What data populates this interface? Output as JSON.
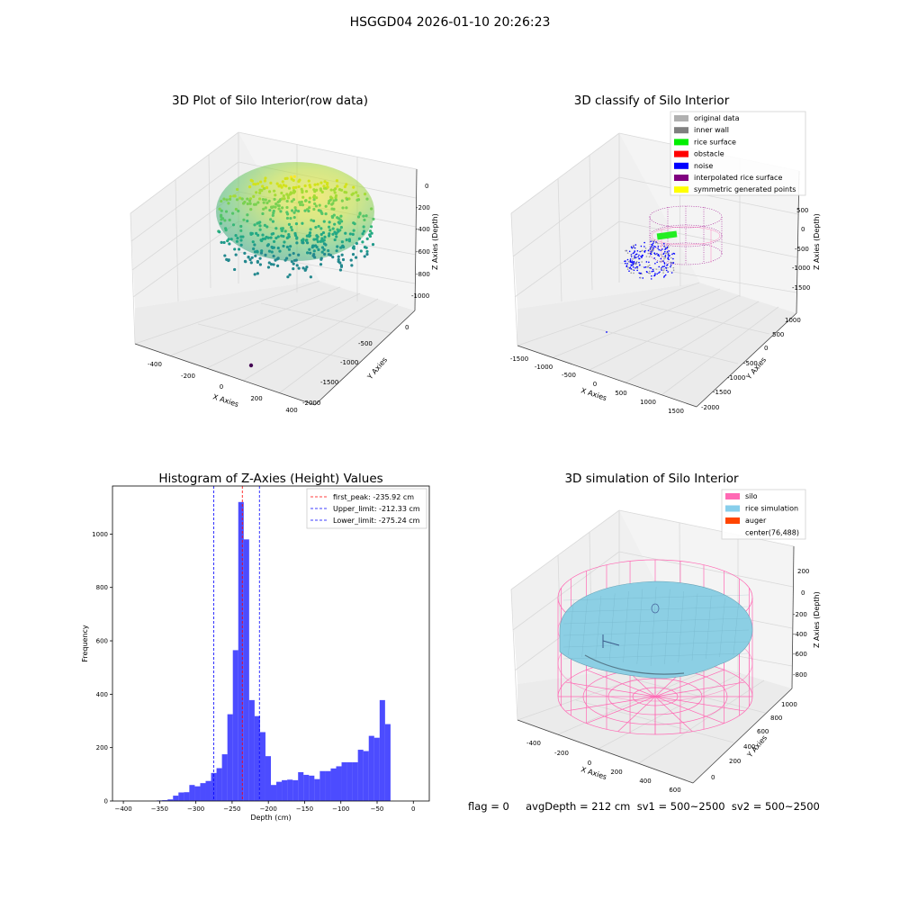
{
  "suptitle": "HSGGD04 2026-01-10 20:26:23",
  "status_text": "flag = 0     avgDepth = 212 cm  sv1 = 500~2500  sv2 = 500~2500",
  "chart_data": [
    {
      "type": "scatter3d",
      "title": "3D Plot of Silo Interior(row data)",
      "xlabel": "X Axies",
      "ylabel": "Y Axies",
      "zlabel": "Z Axies (Depth)",
      "xticks": [
        "-400",
        "-200",
        "0",
        "200",
        "400"
      ],
      "yticks": [
        "0",
        "-500",
        "-1000",
        "-1500",
        "-2000"
      ],
      "zticks": [
        "0",
        "-200",
        "-400",
        "-600",
        "-800",
        "-1000"
      ],
      "colormap": "viridis",
      "grid": true
    },
    {
      "type": "scatter3d",
      "title": "3D classify of Silo Interior",
      "xlabel": "X Axies",
      "ylabel": "Y Axies",
      "zlabel": "Z Axies (Depth)",
      "xticks": [
        "-1500",
        "-1000",
        "-500",
        "0",
        "500",
        "1000",
        "1500"
      ],
      "yticks": [
        "1000",
        "500",
        "0",
        "-500",
        "-1000",
        "-1500",
        "-2000"
      ],
      "zticks": [
        "500",
        "0",
        "-500",
        "-1000",
        "-1500"
      ],
      "legend_position": "top-right",
      "legend": [
        {
          "label": "original data",
          "color": "#b0b0b0"
        },
        {
          "label": "inner wall",
          "color": "#808080"
        },
        {
          "label": "rice surface",
          "color": "#00ee00"
        },
        {
          "label": "obstacle",
          "color": "#ff0000"
        },
        {
          "label": "noise",
          "color": "#0000ff"
        },
        {
          "label": "interpolated rice surface",
          "color": "#800080"
        },
        {
          "label": "symmetric generated points",
          "color": "#ffff00"
        }
      ],
      "grid": true
    },
    {
      "type": "bar",
      "title": "Histogram of Z-Axies (Height) Values",
      "xlabel": "Depth (cm)",
      "ylabel": "Frequency",
      "xlim": [
        -415,
        22
      ],
      "ylim": [
        0,
        1180
      ],
      "xticks": [
        -400,
        -350,
        -300,
        -250,
        -200,
        -150,
        -100,
        -50,
        0
      ],
      "yticks": [
        0,
        200,
        400,
        600,
        800,
        1000
      ],
      "bin_width": 7.5,
      "bar_color": "#0000ff",
      "bins_left": [
        -354,
        -346.5,
        -339,
        -331.5,
        -324,
        -316.5,
        -309,
        -301.5,
        -294,
        -286.5,
        -279,
        -271.5,
        -264,
        -256.5,
        -249,
        -241.5,
        -234,
        -226.5,
        -219,
        -211.5,
        -204,
        -196.5,
        -189,
        -181.5,
        -174,
        -166.5,
        -159,
        -151.5,
        -144,
        -136.5,
        -129,
        -121.5,
        -114,
        -106.5,
        -99,
        -91.5,
        -84,
        -76.5,
        -69,
        -61.5,
        -54,
        -46.5,
        -39,
        -31.5,
        -24,
        -16.5
      ],
      "values": [
        2,
        3,
        6,
        20,
        32,
        33,
        60,
        55,
        67,
        75,
        105,
        123,
        175,
        325,
        565,
        1120,
        980,
        378,
        318,
        258,
        168,
        60,
        72,
        78,
        80,
        78,
        108,
        98,
        95,
        82,
        112,
        112,
        122,
        130,
        145,
        145,
        145,
        192,
        187,
        244,
        237,
        378,
        288,
        0,
        0,
        0
      ],
      "vlines": [
        {
          "label": "first_peak: -235.92 cm",
          "x": -235.92,
          "color": "#ff0000"
        },
        {
          "label": "Upper_limit: -212.33 cm",
          "x": -212.33,
          "color": "#0000ff"
        },
        {
          "label": "Lower_limit: -275.24 cm",
          "x": -275.24,
          "color": "#0000ff"
        }
      ],
      "legend_position": "top-right"
    },
    {
      "type": "surface3d",
      "title": "3D simulation of Silo Interior",
      "xlabel": "X Axies",
      "ylabel": "Y Axies",
      "zlabel": "Z Axies (Depth)",
      "xticks": [
        "-400",
        "-200",
        "0",
        "200",
        "400",
        "600"
      ],
      "yticks": [
        "0",
        "200",
        "400",
        "600",
        "800",
        "1000"
      ],
      "zticks": [
        "200",
        "0",
        "-200",
        "-400",
        "-600",
        "-800"
      ],
      "legend_position": "top-right",
      "legend": [
        {
          "label": "silo",
          "color": "#ff69b4"
        },
        {
          "label": "rice simulation",
          "color": "#87ceeb"
        },
        {
          "label": "auger",
          "color": "#ff4500"
        },
        {
          "label": "center(76,488)",
          "color": ""
        }
      ],
      "grid": true
    }
  ]
}
